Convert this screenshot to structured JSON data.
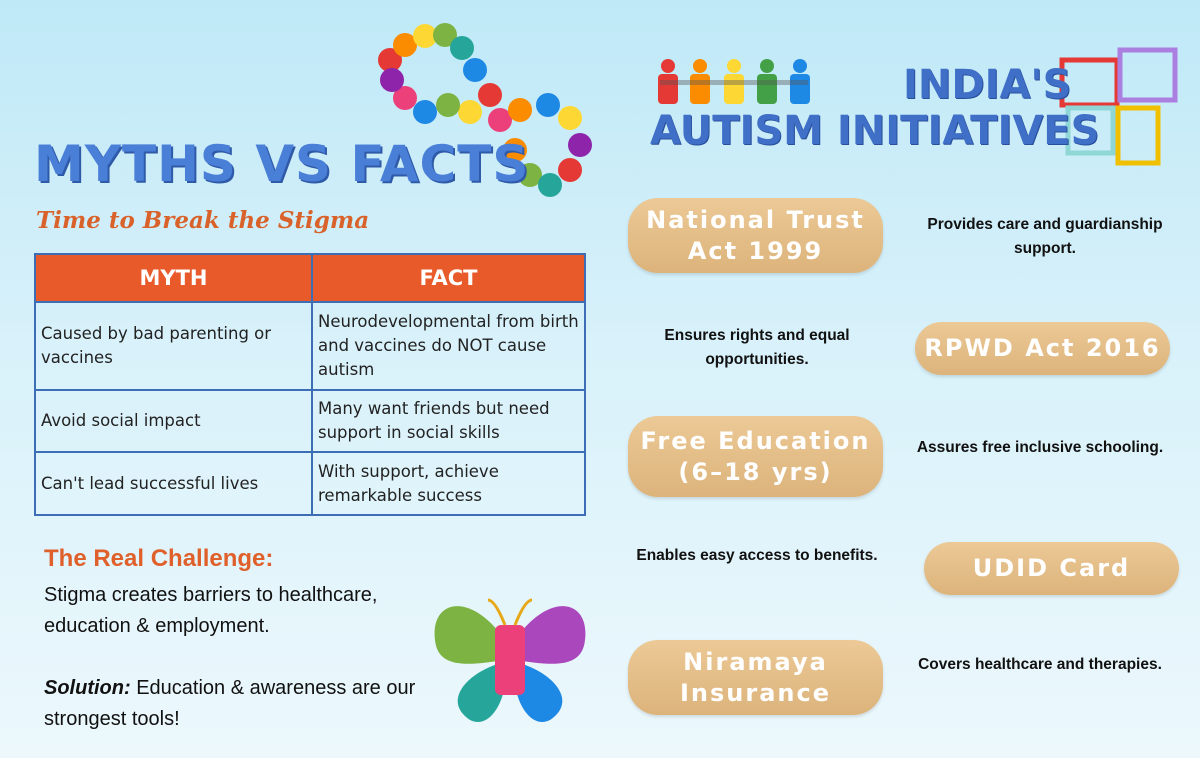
{
  "myths": {
    "title": "MYTHS VS FACTS",
    "subtitle": "Time to Break the Stigma",
    "table": {
      "header": [
        "MYTH",
        "FACT"
      ],
      "rows": [
        [
          "Caused by bad parenting or vaccines",
          "Neurodevelopmental from birth and vaccines do NOT cause autism"
        ],
        [
          "Avoid social impact",
          "Many want friends but need support in social skills"
        ],
        [
          "Can't lead successful lives",
          "With support, achieve remarkable success"
        ]
      ]
    },
    "challenge": {
      "heading": "The Real Challenge:",
      "text": "Stigma creates barriers to healthcare, education & employment.",
      "solution_label": "Solution:",
      "solution_text": "Education & awareness are our strongest tools!"
    }
  },
  "initiatives": {
    "title_line1": "INDIA'S",
    "title_line2": "AUTISM INITIATIVES",
    "items": [
      {
        "name": "National Trust Act 1999",
        "description": "Provides care and guardianship support."
      },
      {
        "name": "RPWD Act 2016",
        "description": "Ensures rights and equal opportunities."
      },
      {
        "name": "Free Education (6–18 yrs)",
        "description": "Assures free inclusive schooling."
      },
      {
        "name": "UDID Card",
        "description": "Enables easy access to benefits."
      },
      {
        "name": "Niramaya Insurance",
        "description": "Covers healthcare and therapies."
      }
    ]
  }
}
